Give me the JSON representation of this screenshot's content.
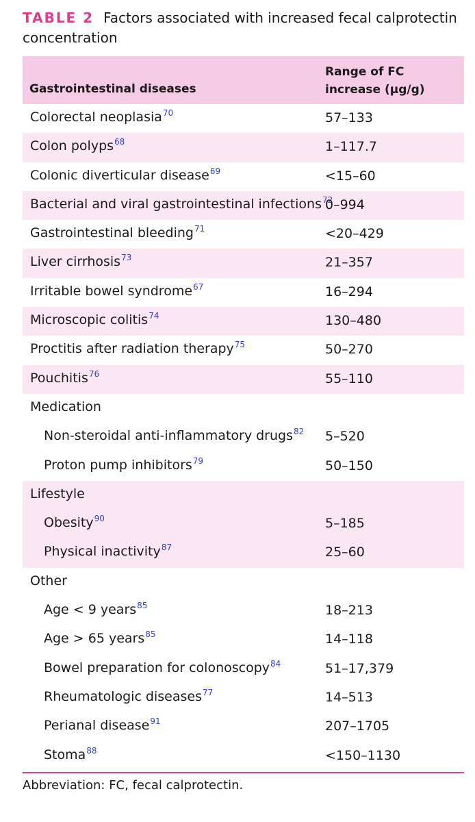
{
  "caption": {
    "label": "TABLE 2",
    "text": "Factors associated with increased fecal calprotectin concentration"
  },
  "table": {
    "header": {
      "col1": "Gastrointestinal diseases",
      "col2": "Range of FC increase (μg/g)"
    },
    "rows": [
      {
        "name": "Colorectal neoplasia",
        "ref": "70",
        "range": "57–133",
        "indent": false,
        "shaded": false
      },
      {
        "name": "Colon polyps",
        "ref": "68",
        "range": "1–117.7",
        "indent": false,
        "shaded": true
      },
      {
        "name": "Colonic diverticular disease",
        "ref": "69",
        "range": "<15–60",
        "indent": false,
        "shaded": false
      },
      {
        "name": "Bacterial and viral gastrointestinal infections",
        "ref": "72",
        "range": "0–994",
        "indent": false,
        "shaded": true
      },
      {
        "name": "Gastrointestinal bleeding",
        "ref": "71",
        "range": "<20–429",
        "indent": false,
        "shaded": false
      },
      {
        "name": "Liver cirrhosis",
        "ref": "73",
        "range": "21–357",
        "indent": false,
        "shaded": true
      },
      {
        "name": "Irritable bowel syndrome",
        "ref": "67",
        "range": "16–294",
        "indent": false,
        "shaded": false
      },
      {
        "name": "Microscopic colitis",
        "ref": "74",
        "range": "130–480",
        "indent": false,
        "shaded": true
      },
      {
        "name": "Proctitis after radiation therapy",
        "ref": "75",
        "range": "50–270",
        "indent": false,
        "shaded": false
      },
      {
        "name": "Pouchitis",
        "ref": "76",
        "range": "55–110",
        "indent": false,
        "shaded": true
      },
      {
        "name": "Medication",
        "ref": "",
        "range": "",
        "indent": false,
        "shaded": false
      },
      {
        "name": "Non-steroidal anti-inflammatory drugs",
        "ref": "82",
        "range": "5–520",
        "indent": true,
        "shaded": false
      },
      {
        "name": "Proton pump inhibitors",
        "ref": "79",
        "range": "50–150",
        "indent": true,
        "shaded": false
      },
      {
        "name": "Lifestyle",
        "ref": "",
        "range": "",
        "indent": false,
        "shaded": true
      },
      {
        "name": "Obesity",
        "ref": "90",
        "range": "5–185",
        "indent": true,
        "shaded": true
      },
      {
        "name": "Physical inactivity",
        "ref": "87",
        "range": "25–60",
        "indent": true,
        "shaded": true
      },
      {
        "name": "Other",
        "ref": "",
        "range": "",
        "indent": false,
        "shaded": false
      },
      {
        "name": "Age < 9 years",
        "ref": "85",
        "range": "18–213",
        "indent": true,
        "shaded": false
      },
      {
        "name": "Age > 65 years",
        "ref": "85",
        "range": "14–118",
        "indent": true,
        "shaded": false
      },
      {
        "name": "Bowel preparation for colonoscopy",
        "ref": "84",
        "range": "51–17,379",
        "indent": true,
        "shaded": false
      },
      {
        "name": "Rheumatologic diseases",
        "ref": "77",
        "range": "14–513",
        "indent": true,
        "shaded": false
      },
      {
        "name": "Perianal disease",
        "ref": "91",
        "range": "207–1705",
        "indent": true,
        "shaded": false
      },
      {
        "name": "Stoma",
        "ref": "88",
        "range": "<150–1130",
        "indent": true,
        "shaded": false
      }
    ]
  },
  "footnote": "Abbreviation: FC, fecal calprotectin.",
  "colors": {
    "accent": "#d8418f",
    "header_bg": "#f5cbe5",
    "row_shade": "#fbe6f3",
    "ref_link": "#2a3fd6"
  }
}
